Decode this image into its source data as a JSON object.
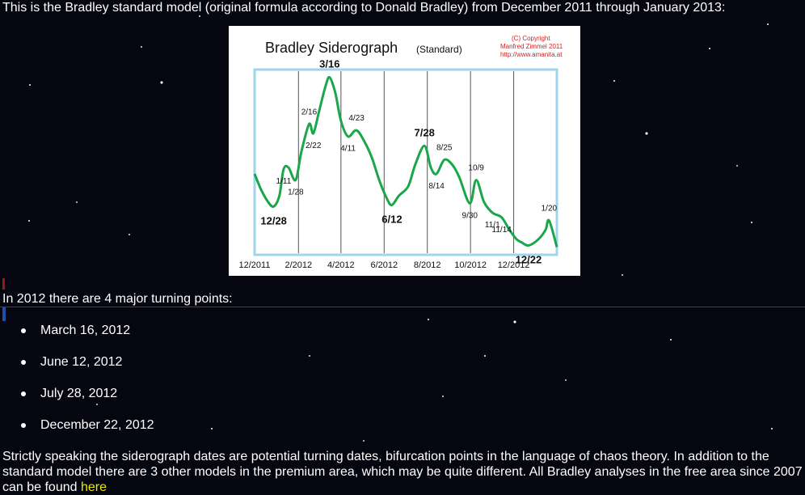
{
  "intro_text": "This is the Bradley standard model (original formula according to Donald Bradley) from December 2011 through January 2013:",
  "chart_image": {
    "title": "Bradley Siderograph",
    "subtitle": "(Standard)",
    "copyright_lines": [
      "(C) Copyright",
      "Manfred Zimmel 2011",
      "http://www.amanita.at"
    ],
    "line_color": "#1aa64a",
    "frame_color": "#9fd4ea"
  },
  "chart_data": {
    "type": "line",
    "title": "Bradley Siderograph",
    "subtitle": "(Standard)",
    "x_tick_labels": [
      "12/2011",
      "2/2012",
      "4/2012",
      "6/2012",
      "8/2012",
      "10/2012",
      "12/2012"
    ],
    "x_range": [
      "2011-12-01",
      "2013-01-31"
    ],
    "y_axis_labeled": false,
    "series": [
      {
        "points": [
          [
            "2011-12-01",
            30
          ],
          [
            "2011-12-10",
            20
          ],
          [
            "2011-12-20",
            12
          ],
          [
            "2011-12-28",
            9
          ],
          [
            "2012-01-05",
            16
          ],
          [
            "2012-01-11",
            33
          ],
          [
            "2012-01-18",
            34
          ],
          [
            "2012-01-28",
            26
          ],
          [
            "2012-02-05",
            44
          ],
          [
            "2012-02-16",
            62
          ],
          [
            "2012-02-22",
            56
          ],
          [
            "2012-03-01",
            70
          ],
          [
            "2012-03-10",
            86
          ],
          [
            "2012-03-16",
            92
          ],
          [
            "2012-03-24",
            82
          ],
          [
            "2012-04-01",
            64
          ],
          [
            "2012-04-11",
            54
          ],
          [
            "2012-04-23",
            58
          ],
          [
            "2012-05-05",
            50
          ],
          [
            "2012-05-15",
            40
          ],
          [
            "2012-05-25",
            26
          ],
          [
            "2012-06-05",
            14
          ],
          [
            "2012-06-12",
            10
          ],
          [
            "2012-06-22",
            16
          ],
          [
            "2012-07-05",
            22
          ],
          [
            "2012-07-15",
            36
          ],
          [
            "2012-07-28",
            48
          ],
          [
            "2012-08-06",
            34
          ],
          [
            "2012-08-14",
            30
          ],
          [
            "2012-08-25",
            39
          ],
          [
            "2012-09-05",
            36
          ],
          [
            "2012-09-15",
            28
          ],
          [
            "2012-09-30",
            11
          ],
          [
            "2012-10-09",
            26
          ],
          [
            "2012-10-20",
            12
          ],
          [
            "2012-11-01",
            5
          ],
          [
            "2012-11-14",
            2
          ],
          [
            "2012-11-25",
            -6
          ],
          [
            "2012-12-05",
            -12
          ],
          [
            "2012-12-12",
            -14
          ],
          [
            "2012-12-22",
            -16
          ],
          [
            "2013-01-05",
            -12
          ],
          [
            "2013-01-15",
            -6
          ],
          [
            "2013-01-20",
            0
          ],
          [
            "2013-01-31",
            -17
          ]
        ]
      }
    ],
    "annotations": [
      {
        "label": "12/28",
        "date": "2011-12-28",
        "bold": true
      },
      {
        "label": "1/11",
        "date": "2012-01-11",
        "bold": false
      },
      {
        "label": "1/28",
        "date": "2012-01-28",
        "bold": false
      },
      {
        "label": "2/16",
        "date": "2012-02-16",
        "bold": false
      },
      {
        "label": "2/22",
        "date": "2012-02-22",
        "bold": false
      },
      {
        "label": "3/16",
        "date": "2012-03-16",
        "bold": true
      },
      {
        "label": "4/11",
        "date": "2012-04-11",
        "bold": false
      },
      {
        "label": "4/23",
        "date": "2012-04-23",
        "bold": false
      },
      {
        "label": "6/12",
        "date": "2012-06-12",
        "bold": true
      },
      {
        "label": "7/28",
        "date": "2012-07-28",
        "bold": true
      },
      {
        "label": "8/14",
        "date": "2012-08-14",
        "bold": false
      },
      {
        "label": "8/25",
        "date": "2012-08-25",
        "bold": false
      },
      {
        "label": "9/30",
        "date": "2012-09-30",
        "bold": false
      },
      {
        "label": "10/9",
        "date": "2012-10-09",
        "bold": false
      },
      {
        "label": "11/1",
        "date": "2012-11-01",
        "bold": false
      },
      {
        "label": "11/14",
        "date": "2012-11-14",
        "bold": false
      },
      {
        "label": "12/22",
        "date": "2012-12-22",
        "bold": true
      },
      {
        "label": "1/20",
        "date": "2013-01-20",
        "bold": false
      }
    ],
    "grid": true
  },
  "section_heading": "In 2012 there are 4 major turning points:",
  "turning_points": [
    "March 16, 2012",
    "June 12, 2012",
    "July 28, 2012",
    "December 22, 2012"
  ],
  "closing_text": "Strictly speaking the siderograph dates are potential turning dates, bifurcation points in the language of chaos theory. In addition to the standard model there are 3 other models in the premium area, which may be quite different. All Bradley analyses in the free area since 2007 can be found",
  "closing_link": "here"
}
